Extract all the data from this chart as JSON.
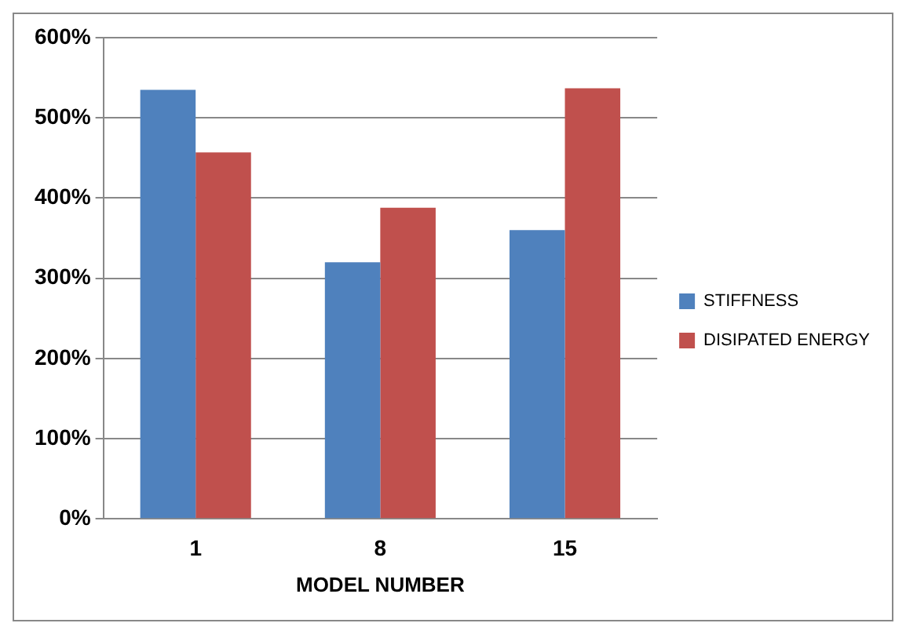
{
  "chart_data": {
    "type": "bar",
    "categories": [
      "1",
      "8",
      "15"
    ],
    "series": [
      {
        "name": "STIFFNESS",
        "color": "#4f81bd",
        "values": [
          535,
          320,
          360
        ]
      },
      {
        "name": "DISIPATED ENERGY",
        "color": "#c0504d",
        "values": [
          457,
          388,
          537
        ]
      }
    ],
    "xlabel": "MODEL NUMBER",
    "ylim": [
      0,
      600
    ],
    "yticks": [
      {
        "value": 0,
        "label": "0%"
      },
      {
        "value": 100,
        "label": "100%"
      },
      {
        "value": 200,
        "label": "200%"
      },
      {
        "value": 300,
        "label": "300%"
      },
      {
        "value": 400,
        "label": "400%"
      },
      {
        "value": 500,
        "label": "500%"
      },
      {
        "value": 600,
        "label": "600%"
      }
    ],
    "grid": "y",
    "legend": "right"
  }
}
